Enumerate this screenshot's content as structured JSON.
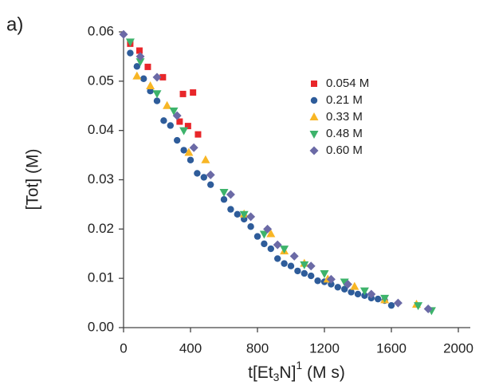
{
  "panel_label": "a)",
  "chart_data": {
    "type": "scatter",
    "y_label": "[Tot] (M)",
    "x_label": [
      "t[Et",
      "3",
      "N]",
      "1",
      " (M s)"
    ],
    "xlim": [
      0,
      2000
    ],
    "xticks": [
      0,
      400,
      800,
      1200,
      1600,
      2000
    ],
    "ylim": [
      0,
      0.06
    ],
    "yticks": [
      {
        "value": 0,
        "label": "0.00"
      },
      0.01,
      0.02,
      0.03,
      0.04,
      0.05,
      0.06
    ],
    "legend": "upper right",
    "series": [
      {
        "name": "0.054 M",
        "color": "#e8262a",
        "marker": "square",
        "x": [
          40,
          95,
          145,
          235,
          355,
          415,
          335,
          385,
          445
        ],
        "values": [
          0.0576,
          0.0562,
          0.0529,
          0.0508,
          0.0474,
          0.0477,
          0.0418,
          0.0409,
          0.0392
        ]
      },
      {
        "name": "0.21 M",
        "color": "#2e5c9a",
        "marker": "circle",
        "x": [
          40,
          80,
          120,
          160,
          200,
          240,
          280,
          320,
          360,
          400,
          440,
          480,
          520,
          600,
          640,
          680,
          720,
          760,
          800,
          840,
          880,
          920,
          960,
          1000,
          1040,
          1080,
          1120,
          1160,
          1200,
          1240,
          1280,
          1320,
          1360,
          1400,
          1440,
          1480,
          1520,
          1560,
          1600
        ],
        "values": [
          0.0557,
          0.053,
          0.0505,
          0.048,
          0.046,
          0.042,
          0.041,
          0.038,
          0.036,
          0.034,
          0.0313,
          0.0305,
          0.029,
          0.026,
          0.024,
          0.023,
          0.022,
          0.0205,
          0.0185,
          0.017,
          0.016,
          0.014,
          0.013,
          0.0125,
          0.0115,
          0.011,
          0.0105,
          0.0095,
          0.0093,
          0.0088,
          0.0082,
          0.0078,
          0.0072,
          0.0068,
          0.0065,
          0.006,
          0.0058,
          0.0055,
          0.0045
        ]
      },
      {
        "name": "0.33 M",
        "color": "#f8b625",
        "marker": "triangle-up",
        "x": [
          80,
          160,
          260,
          390,
          490,
          720,
          880,
          960,
          1080,
          1220,
          1380,
          1560,
          1750
        ],
        "values": [
          0.051,
          0.049,
          0.045,
          0.0355,
          0.034,
          0.023,
          0.019,
          0.0155,
          0.013,
          0.0098,
          0.0083,
          0.0056,
          0.0047
        ]
      },
      {
        "name": "0.48 M",
        "color": "#3db36b",
        "marker": "triangle-down",
        "x": [
          40,
          100,
          200,
          300,
          360,
          600,
          720,
          840,
          960,
          1080,
          1200,
          1320,
          1440,
          1560,
          1760,
          1840
        ],
        "values": [
          0.058,
          0.054,
          0.0475,
          0.044,
          0.04,
          0.0275,
          0.023,
          0.019,
          0.016,
          0.0128,
          0.011,
          0.0093,
          0.0075,
          0.006,
          0.0045,
          0.0035
        ]
      },
      {
        "name": "0.60 M",
        "color": "#6b6aa6",
        "marker": "diamond",
        "x": [
          0,
          100,
          200,
          320,
          420,
          520,
          640,
          760,
          860,
          920,
          1020,
          1120,
          1240,
          1340,
          1480,
          1640,
          1820
        ],
        "values": [
          0.0595,
          0.055,
          0.0508,
          0.043,
          0.0365,
          0.031,
          0.027,
          0.0225,
          0.02,
          0.0168,
          0.0145,
          0.0125,
          0.0098,
          0.0088,
          0.0068,
          0.005,
          0.0038
        ]
      }
    ]
  }
}
